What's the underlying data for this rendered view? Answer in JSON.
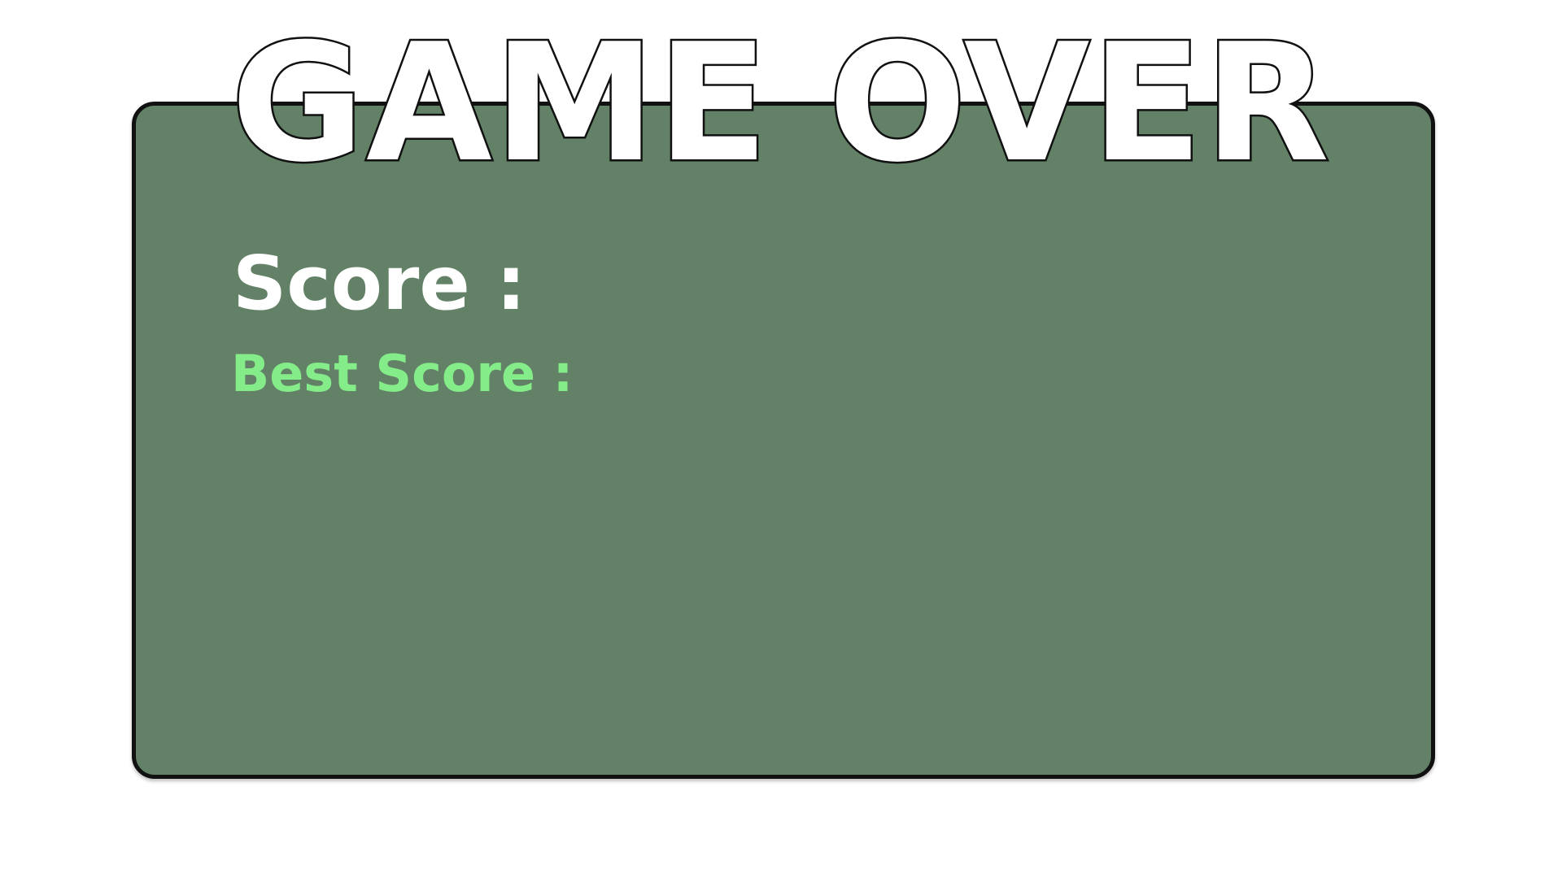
{
  "title": "GAME OVER",
  "score": {
    "label": "Score :"
  },
  "best_score": {
    "label": "Best Score :"
  },
  "colors": {
    "panel_background": "#628166",
    "panel_border": "#111111",
    "title_fill": "#ffffff",
    "title_outline": "#111111",
    "score_text": "#ffffff",
    "best_score_text": "#84ec88",
    "page_background": "#ffffff"
  }
}
